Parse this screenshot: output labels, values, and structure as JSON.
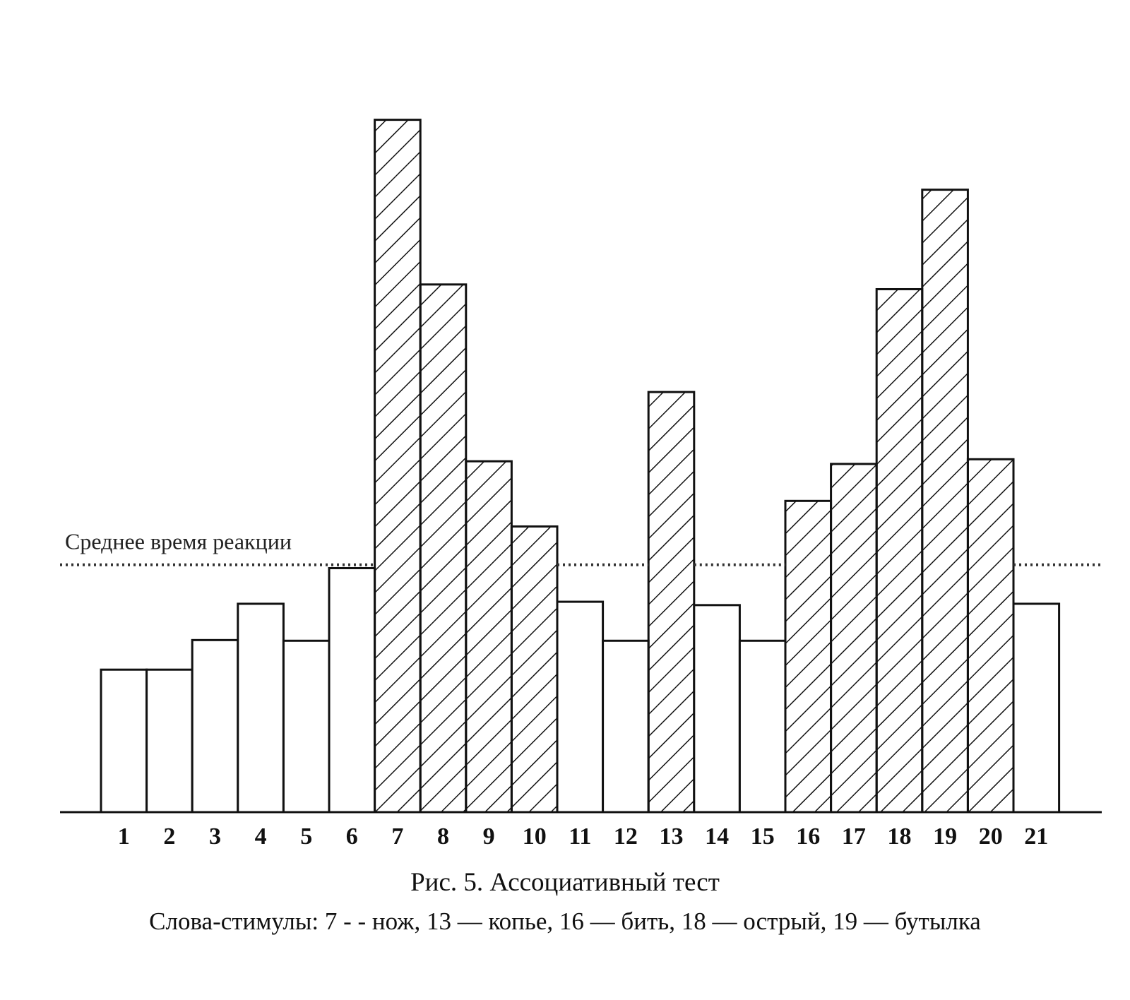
{
  "chart_data": {
    "type": "bar",
    "categories": [
      "1",
      "2",
      "3",
      "4",
      "5",
      "6",
      "7",
      "8",
      "9",
      "10",
      "11",
      "12",
      "13",
      "14",
      "15",
      "16",
      "17",
      "18",
      "19",
      "20",
      "21"
    ],
    "values": [
      21.2,
      21.2,
      25.6,
      31.0,
      25.5,
      36.3,
      103.0,
      78.5,
      52.2,
      42.5,
      31.3,
      25.5,
      62.5,
      30.8,
      25.5,
      46.3,
      51.8,
      77.8,
      92.6,
      52.5,
      31.0
    ],
    "highlighted": [
      false,
      false,
      false,
      false,
      false,
      false,
      true,
      true,
      true,
      true,
      false,
      false,
      true,
      false,
      false,
      true,
      true,
      true,
      true,
      true,
      false
    ],
    "highlight_pattern": "diagonal-hatch",
    "mean_line": {
      "label": "Среднее время реакции",
      "value": 36.8,
      "style": "dotted"
    },
    "ylim": [
      0,
      110
    ],
    "xlabel": "",
    "ylabel": "",
    "grid": false,
    "title": "Рис. 5. Ассоциативный тест",
    "subtitle": "Слова-стимулы: 7 - - нож, 13 — копье, 16 — бить, 18 — острый, 19 — бутылка",
    "colors": {
      "stroke": "#111111",
      "fill": "#ffffff",
      "hatch": "#111111",
      "mean_line": "#333333"
    }
  }
}
